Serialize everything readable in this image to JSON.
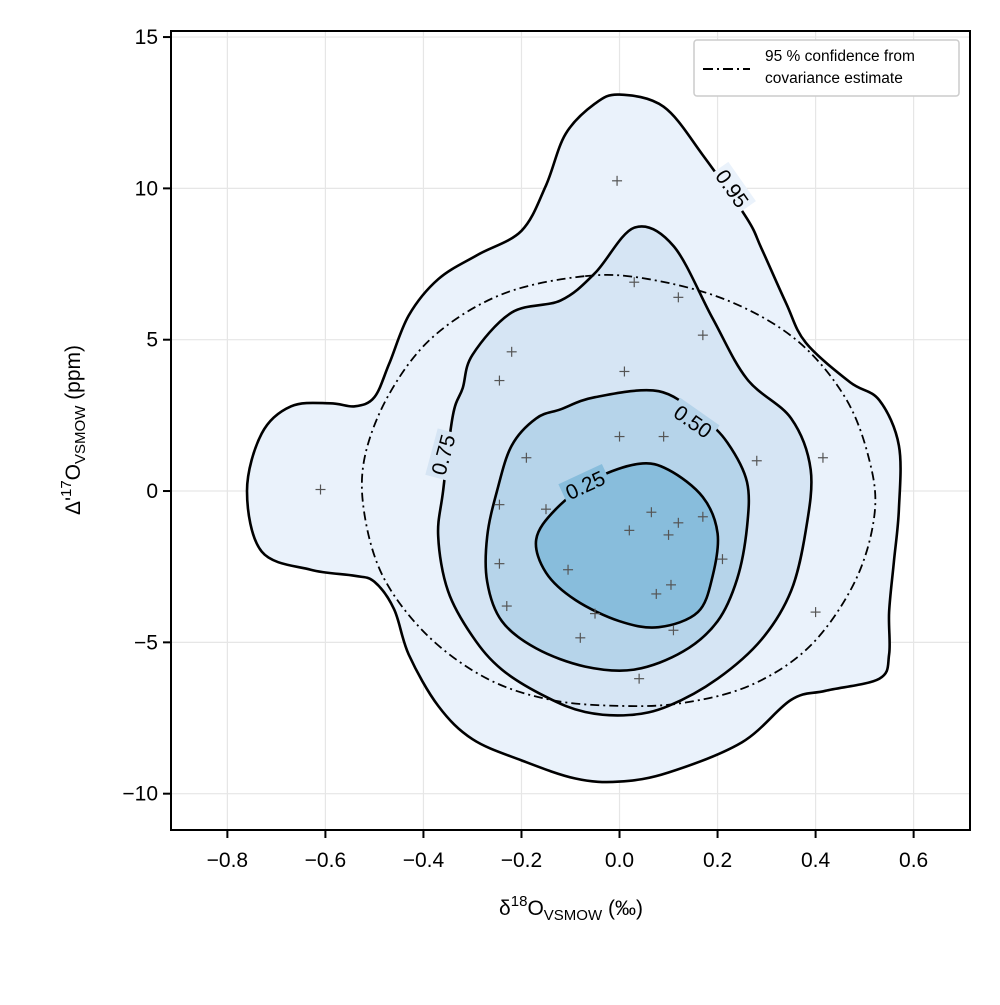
{
  "chart_data": {
    "type": "contour",
    "title": "",
    "xlabel": {
      "main": "δ",
      "sup": "18",
      "base": "O",
      "sub": "VSMOW",
      "tail": " (‰)"
    },
    "ylabel": {
      "main": "Δ'",
      "sup": "17",
      "base": "O",
      "sub": "VSMOW",
      "tail": " (ppm)"
    },
    "xlim": [
      -0.915,
      0.715
    ],
    "ylim": [
      -11.2,
      15.2
    ],
    "x_ticks": [
      -0.8,
      -0.6,
      -0.4,
      -0.2,
      0.0,
      0.2,
      0.4,
      0.6
    ],
    "x_tick_labels": [
      "−0.8",
      "−0.6",
      "−0.4",
      "−0.2",
      "0.0",
      "0.2",
      "0.4",
      "0.6"
    ],
    "y_ticks": [
      -10,
      -5,
      0,
      5,
      10,
      15
    ],
    "y_tick_labels": [
      "−10",
      "−5",
      "0",
      "5",
      "10",
      "15"
    ],
    "grid": true,
    "legend": {
      "position": "top-right",
      "entries": [
        {
          "style": "dash-dot",
          "label_lines": [
            "95 % confidence from",
            "covariance estimate"
          ]
        }
      ]
    },
    "colors": {
      "level_0_95_fill": "#eaf2fb",
      "level_0_75_fill": "#d6e5f4",
      "level_0_50_fill": "#b6d4ea",
      "level_0_25_fill": "#88bddc",
      "contour_line": "#000000",
      "point_marker": "#555555"
    },
    "contour_levels": [
      {
        "level": 0.95,
        "label": "0.95",
        "label_position": {
          "x": 0.23,
          "y": 10.0
        },
        "label_angle": 55,
        "path": [
          [
            0.0,
            13.1
          ],
          [
            0.09,
            12.7
          ],
          [
            0.17,
            11.1
          ],
          [
            0.26,
            9.0
          ],
          [
            0.29,
            8.0
          ],
          [
            0.34,
            6.2
          ],
          [
            0.38,
            4.9
          ],
          [
            0.47,
            3.6
          ],
          [
            0.53,
            3.0
          ],
          [
            0.57,
            1.5
          ],
          [
            0.57,
            -0.6
          ],
          [
            0.56,
            -2.3
          ],
          [
            0.55,
            -4.0
          ],
          [
            0.55,
            -5.4
          ],
          [
            0.53,
            -6.2
          ],
          [
            0.42,
            -6.6
          ],
          [
            0.35,
            -6.9
          ],
          [
            0.25,
            -8.3
          ],
          [
            0.1,
            -9.3
          ],
          [
            0.0,
            -9.6
          ],
          [
            -0.09,
            -9.5
          ],
          [
            -0.2,
            -8.9
          ],
          [
            -0.3,
            -8.2
          ],
          [
            -0.37,
            -7.1
          ],
          [
            -0.43,
            -5.4
          ],
          [
            -0.46,
            -3.9
          ],
          [
            -0.5,
            -3.0
          ],
          [
            -0.54,
            -2.8
          ],
          [
            -0.63,
            -2.6
          ],
          [
            -0.73,
            -2.0
          ],
          [
            -0.76,
            0.0
          ],
          [
            -0.73,
            1.9
          ],
          [
            -0.67,
            2.8
          ],
          [
            -0.59,
            2.9
          ],
          [
            -0.54,
            2.8
          ],
          [
            -0.5,
            3.1
          ],
          [
            -0.47,
            4.2
          ],
          [
            -0.43,
            5.8
          ],
          [
            -0.37,
            7.0
          ],
          [
            -0.29,
            7.8
          ],
          [
            -0.2,
            8.6
          ],
          [
            -0.15,
            10.1
          ],
          [
            -0.11,
            11.8
          ],
          [
            -0.05,
            12.8
          ]
        ]
      },
      {
        "level": 0.75,
        "label": "0.75",
        "label_position": {
          "x": -0.36,
          "y": 1.2
        },
        "label_angle": -75,
        "path": [
          [
            0.03,
            8.7
          ],
          [
            0.11,
            8.1
          ],
          [
            0.19,
            5.7
          ],
          [
            0.26,
            3.7
          ],
          [
            0.35,
            2.4
          ],
          [
            0.39,
            0.7
          ],
          [
            0.38,
            -1.3
          ],
          [
            0.35,
            -3.3
          ],
          [
            0.29,
            -4.9
          ],
          [
            0.2,
            -6.2
          ],
          [
            0.1,
            -7.1
          ],
          [
            0.02,
            -7.4
          ],
          [
            -0.07,
            -7.3
          ],
          [
            -0.15,
            -6.8
          ],
          [
            -0.24,
            -5.9
          ],
          [
            -0.3,
            -4.8
          ],
          [
            -0.35,
            -3.3
          ],
          [
            -0.37,
            -1.5
          ],
          [
            -0.36,
            0.0
          ],
          [
            -0.34,
            2.5
          ],
          [
            -0.32,
            3.4
          ],
          [
            -0.3,
            4.5
          ],
          [
            -0.22,
            5.9
          ],
          [
            -0.12,
            6.3
          ],
          [
            -0.05,
            7.2
          ]
        ]
      },
      {
        "level": 0.5,
        "label": "0.50",
        "label_position": {
          "x": 0.15,
          "y": 2.3
        },
        "label_angle": 35,
        "path": [
          [
            -0.05,
            3.1
          ],
          [
            0.08,
            3.3
          ],
          [
            0.17,
            2.4
          ],
          [
            0.22,
            1.6
          ],
          [
            0.26,
            0.3
          ],
          [
            0.26,
            -1.2
          ],
          [
            0.24,
            -2.9
          ],
          [
            0.2,
            -4.3
          ],
          [
            0.13,
            -5.3
          ],
          [
            0.03,
            -5.9
          ],
          [
            -0.07,
            -5.8
          ],
          [
            -0.17,
            -5.2
          ],
          [
            -0.24,
            -4.3
          ],
          [
            -0.27,
            -3.0
          ],
          [
            -0.27,
            -1.5
          ],
          [
            -0.25,
            0.0
          ],
          [
            -0.22,
            1.5
          ],
          [
            -0.17,
            2.4
          ],
          [
            -0.12,
            2.7
          ]
        ]
      },
      {
        "level": 0.25,
        "label": "0.25",
        "label_position": {
          "x": -0.07,
          "y": 0.2
        },
        "label_angle": -25,
        "path": [
          [
            0.04,
            0.9
          ],
          [
            0.1,
            0.7
          ],
          [
            0.17,
            -0.2
          ],
          [
            0.2,
            -1.4
          ],
          [
            0.19,
            -2.8
          ],
          [
            0.16,
            -4.0
          ],
          [
            0.08,
            -4.5
          ],
          [
            0.0,
            -4.3
          ],
          [
            -0.09,
            -3.6
          ],
          [
            -0.15,
            -2.7
          ],
          [
            -0.17,
            -1.6
          ],
          [
            -0.13,
            -0.6
          ],
          [
            -0.05,
            0.4
          ]
        ]
      }
    ],
    "confidence_ellipse": {
      "label": "95 % confidence",
      "path": [
        [
          -0.07,
          7.1
        ],
        [
          0.06,
          7.0
        ],
        [
          0.22,
          6.3
        ],
        [
          0.36,
          5.0
        ],
        [
          0.46,
          3.1
        ],
        [
          0.51,
          1.0
        ],
        [
          0.52,
          -0.8
        ],
        [
          0.48,
          -3.0
        ],
        [
          0.39,
          -5.1
        ],
        [
          0.27,
          -6.4
        ],
        [
          0.13,
          -7.0
        ],
        [
          0.0,
          -7.1
        ],
        [
          -0.14,
          -6.9
        ],
        [
          -0.27,
          -6.2
        ],
        [
          -0.39,
          -4.8
        ],
        [
          -0.48,
          -2.9
        ],
        [
          -0.52,
          -0.8
        ],
        [
          -0.52,
          1.1
        ],
        [
          -0.47,
          3.2
        ],
        [
          -0.38,
          5.1
        ],
        [
          -0.24,
          6.5
        ]
      ]
    },
    "points": [
      [
        -0.61,
        0.05
      ],
      [
        -0.005,
        10.25
      ],
      [
        0.03,
        6.9
      ],
      [
        0.12,
        6.4
      ],
      [
        0.17,
        5.15
      ],
      [
        -0.22,
        4.6
      ],
      [
        -0.245,
        3.65
      ],
      [
        0.01,
        3.95
      ],
      [
        0.0,
        1.8
      ],
      [
        0.09,
        1.8
      ],
      [
        -0.19,
        1.1
      ],
      [
        0.28,
        1.0
      ],
      [
        0.415,
        1.1
      ],
      [
        -0.245,
        -0.45
      ],
      [
        -0.15,
        -0.6
      ],
      [
        0.065,
        -0.7
      ],
      [
        0.12,
        -1.05
      ],
      [
        0.17,
        -0.85
      ],
      [
        0.02,
        -1.3
      ],
      [
        0.1,
        -1.45
      ],
      [
        0.21,
        -2.25
      ],
      [
        -0.245,
        -2.4
      ],
      [
        -0.105,
        -2.6
      ],
      [
        0.105,
        -3.1
      ],
      [
        0.075,
        -3.4
      ],
      [
        -0.23,
        -3.8
      ],
      [
        -0.05,
        -4.05
      ],
      [
        0.11,
        -4.6
      ],
      [
        -0.08,
        -4.85
      ],
      [
        0.4,
        -4.0
      ],
      [
        0.04,
        -6.2
      ]
    ]
  }
}
